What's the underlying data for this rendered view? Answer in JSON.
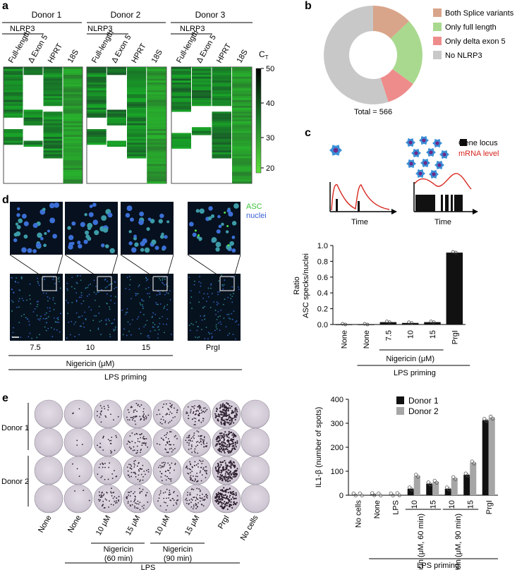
{
  "panel_labels": {
    "a": "a",
    "b": "b",
    "c": "c",
    "d": "d",
    "e": "e"
  },
  "panel_a": {
    "donors": [
      "Donor 1",
      "Donor 2",
      "Donor 3"
    ],
    "gene_group": "NLRP3",
    "columns": [
      "Full-length",
      "Δ Exon 5",
      "HPRT",
      "18S"
    ],
    "colorbar_label": "C",
    "colorbar_sub": "T",
    "colorbar_ticks": [
      "50",
      "40",
      "30",
      "20"
    ],
    "colors": {
      "high": "#000000",
      "mid": "#1d7a2a",
      "low": "#4fd13a",
      "absent": "#ffffff"
    }
  },
  "panel_b": {
    "chart_data": {
      "type": "pie",
      "total_label": "Total = 566",
      "slices": [
        {
          "label": "Both Splice variants",
          "value": 0.13,
          "color": "#d9a58a"
        },
        {
          "label": "Only full length",
          "value": 0.22,
          "color": "#a9d98f"
        },
        {
          "label": "Only delta exon 5",
          "value": 0.1,
          "color": "#ee8c8c"
        },
        {
          "label": "No NLRP3",
          "value": 0.55,
          "color": "#c8c8c8"
        }
      ]
    }
  },
  "panel_c": {
    "legend_gene": "Gene locus",
    "legend_mrna": "mRNA level",
    "time_label": "Time",
    "mrna_color": "#d6261e",
    "chart_data": {
      "type": "bar",
      "ylabel_1": "Ratio",
      "ylabel_2": "ASC specks/nuclei",
      "ylim": [
        0,
        1.0
      ],
      "yticks": [
        "1.0",
        "0.8",
        "0.6",
        "0.4",
        "0.2",
        "0.0"
      ],
      "categories": [
        "None",
        "None",
        "7.5",
        "10",
        "15",
        "PrgI"
      ],
      "values": [
        0.0,
        0.0,
        0.03,
        0.02,
        0.03,
        0.91
      ],
      "group_label": "Nigericin (μM)",
      "group_label2": "LPS priming"
    }
  },
  "panel_d": {
    "legend_asc": "ASC",
    "legend_nuclei": "nuclei",
    "conditions": [
      "7.5",
      "10",
      "15",
      "PrgI"
    ],
    "group_label": "Nigericin (μM)",
    "group_label2": "LPS priming"
  },
  "panel_e": {
    "donor_labels": [
      "Donor 1",
      "Donor 2"
    ],
    "well_labels": [
      "None",
      "None",
      "10 μM",
      "15 μM",
      "10 μM",
      "15 μM",
      "PrgI",
      "No cells"
    ],
    "nig60_label_1": "Nigericin",
    "nig60_label_2": "(60 min)",
    "nig90_label_1": "Nigericin",
    "nig90_label_2": "(90 min)",
    "lps_label": "LPS",
    "well_spot_counts": [
      0,
      3,
      20,
      45,
      35,
      60,
      300,
      0
    ],
    "chart_data": {
      "type": "bar",
      "ylabel": "IL1-β (number of spots)",
      "ylim": [
        0,
        400
      ],
      "yticks": [
        "400",
        "300",
        "200",
        "100",
        "0"
      ],
      "categories": [
        "No cells",
        "None",
        "LPS",
        "10",
        "15",
        "10",
        "15",
        "PrgI"
      ],
      "series": [
        {
          "name": "Donor 1",
          "color": "#111111",
          "values": [
            2,
            3,
            2,
            27,
            48,
            27,
            85,
            313
          ]
        },
        {
          "name": "Donor 2",
          "color": "#a6a6a6",
          "values": [
            2,
            2,
            3,
            80,
            55,
            70,
            135,
            322
          ]
        }
      ],
      "nig60_label": "Nigericin (μM, 60 min)",
      "nig90_label": "Nigericin (μM, 90 min)",
      "group_label": "LPS priming"
    }
  }
}
